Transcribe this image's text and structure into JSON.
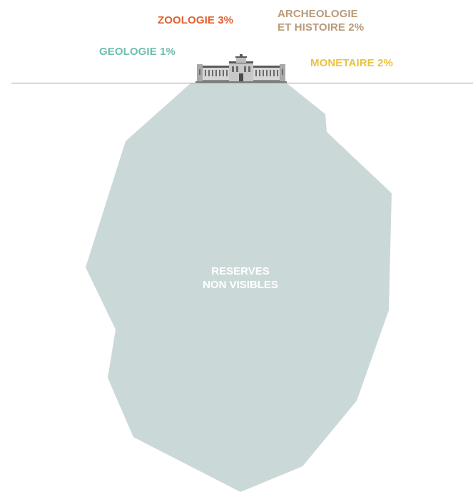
{
  "categories": [
    {
      "id": "zoologie",
      "lines": [
        "ZOOLOGIE 3%"
      ],
      "color": "#e0612f"
    },
    {
      "id": "archeologie",
      "lines": [
        "ARCHEOLOGIE",
        "ET HISTOIRE 2%"
      ],
      "color": "#b99a7a"
    },
    {
      "id": "geologie",
      "lines": [
        "GEOLOGIE 1%"
      ],
      "color": "#6cbfae"
    },
    {
      "id": "monetaire",
      "lines": [
        "MONETAIRE 2%"
      ],
      "color": "#ecc23f"
    }
  ],
  "reserves": {
    "lines": [
      "RESERVES",
      "NON VISIBLES"
    ],
    "fill_color": "#cad9d8",
    "text_color": "#ffffff"
  },
  "waterline_color": "#9aa3a3",
  "building_color": "#6b6b6b"
}
